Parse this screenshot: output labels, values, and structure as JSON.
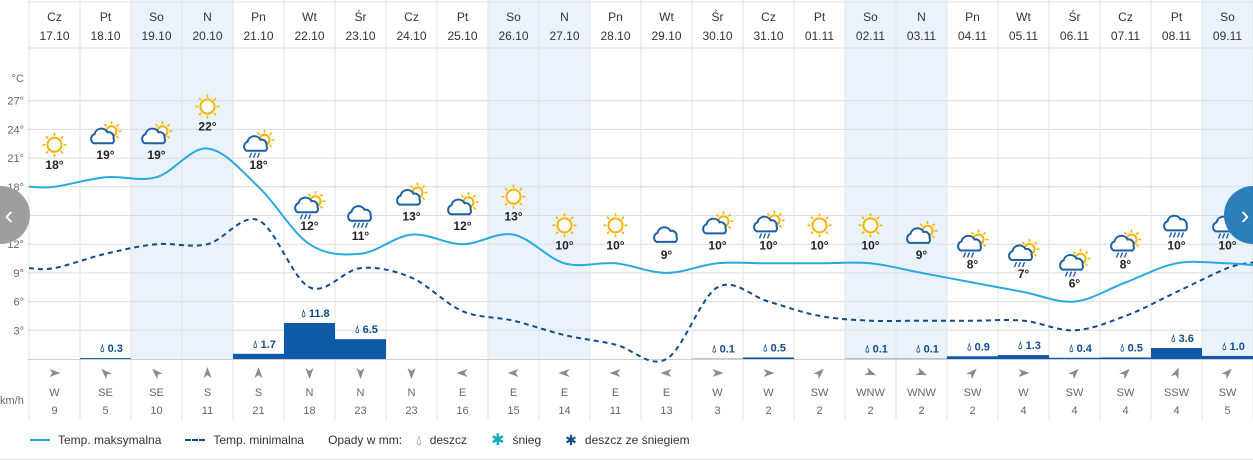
{
  "chart_data": {
    "type": "line",
    "yaxis": {
      "unit_label": "°C",
      "ticks": [
        "27°",
        "24°",
        "21°",
        "18°",
        "15°",
        "12°",
        "9°",
        "6°",
        "3°"
      ],
      "tick_values": [
        27,
        24,
        21,
        18,
        15,
        12,
        9,
        6,
        3
      ],
      "ylim": [
        0,
        30
      ]
    },
    "days": [
      {
        "dow": "Cz",
        "date": "17.10",
        "tmax": 18,
        "tmax_label": "18°",
        "tmin": 9.5,
        "precip": 0,
        "precip_label": "",
        "wind_dir": "W",
        "wind_speed": "9",
        "weekend": false,
        "icon": "sun-icon"
      },
      {
        "dow": "Pt",
        "date": "18.10",
        "tmax": 19,
        "tmax_label": "19°",
        "tmin": 11,
        "precip": 0.3,
        "precip_label": "0.3",
        "wind_dir": "SE",
        "wind_speed": "5",
        "weekend": false,
        "icon": "partly-cloudy-icon"
      },
      {
        "dow": "So",
        "date": "19.10",
        "tmax": 19,
        "tmax_label": "19°",
        "tmin": 12,
        "precip": 0,
        "precip_label": "",
        "wind_dir": "SE",
        "wind_speed": "10",
        "weekend": true,
        "icon": "partly-cloudy-icon"
      },
      {
        "dow": "N",
        "date": "20.10",
        "tmax": 22,
        "tmax_label": "22°",
        "tmin": 12,
        "precip": 0,
        "precip_label": "",
        "wind_dir": "S",
        "wind_speed": "11",
        "weekend": true,
        "icon": "sun-icon"
      },
      {
        "dow": "Pn",
        "date": "21.10",
        "tmax": 18,
        "tmax_label": "18°",
        "tmin": 14.5,
        "precip": 1.7,
        "precip_label": "1.7",
        "wind_dir": "S",
        "wind_speed": "21",
        "weekend": false,
        "icon": "sun-rain-icon"
      },
      {
        "dow": "Wt",
        "date": "22.10",
        "tmax": 12,
        "tmax_label": "12°",
        "tmin": 7.5,
        "precip": 11.8,
        "precip_label": "11.8",
        "wind_dir": "N",
        "wind_speed": "18",
        "weekend": false,
        "icon": "sun-rain-icon"
      },
      {
        "dow": "Śr",
        "date": "23.10",
        "tmax": 11,
        "tmax_label": "11°",
        "tmin": 9.5,
        "precip": 6.5,
        "precip_label": "6.5",
        "wind_dir": "N",
        "wind_speed": "23",
        "weekend": false,
        "icon": "rain-cloud-icon"
      },
      {
        "dow": "Cz",
        "date": "24.10",
        "tmax": 13,
        "tmax_label": "13°",
        "tmin": 8.5,
        "precip": 0,
        "precip_label": "",
        "wind_dir": "N",
        "wind_speed": "23",
        "weekend": false,
        "icon": "partly-cloudy-icon"
      },
      {
        "dow": "Pt",
        "date": "25.10",
        "tmax": 12,
        "tmax_label": "12°",
        "tmin": 5,
        "precip": 0,
        "precip_label": "",
        "wind_dir": "E",
        "wind_speed": "16",
        "weekend": false,
        "icon": "partly-cloudy-icon"
      },
      {
        "dow": "So",
        "date": "26.10",
        "tmax": 13,
        "tmax_label": "13°",
        "tmin": 4,
        "precip": 0,
        "precip_label": "",
        "wind_dir": "E",
        "wind_speed": "15",
        "weekend": true,
        "icon": "sun-icon"
      },
      {
        "dow": "N",
        "date": "27.10",
        "tmax": 10,
        "tmax_label": "10°",
        "tmin": 2.5,
        "precip": 0,
        "precip_label": "",
        "wind_dir": "E",
        "wind_speed": "14",
        "weekend": true,
        "icon": "sun-icon"
      },
      {
        "dow": "Pn",
        "date": "28.10",
        "tmax": 10,
        "tmax_label": "10°",
        "tmin": 1.5,
        "precip": 0,
        "precip_label": "",
        "wind_dir": "E",
        "wind_speed": "11",
        "weekend": false,
        "icon": "sun-icon"
      },
      {
        "dow": "Wt",
        "date": "29.10",
        "tmax": 9,
        "tmax_label": "9°",
        "tmin": 0,
        "precip": 0,
        "precip_label": "",
        "wind_dir": "E",
        "wind_speed": "13",
        "weekend": false,
        "icon": "cloud-icon"
      },
      {
        "dow": "Śr",
        "date": "30.10",
        "tmax": 10,
        "tmax_label": "10°",
        "tmin": 7.5,
        "precip": 0.1,
        "precip_label": "0.1",
        "wind_dir": "W",
        "wind_speed": "3",
        "weekend": false,
        "icon": "partly-cloudy-icon"
      },
      {
        "dow": "Cz",
        "date": "31.10",
        "tmax": 10,
        "tmax_label": "10°",
        "tmin": 6,
        "precip": 0.5,
        "precip_label": "0.5",
        "wind_dir": "W",
        "wind_speed": "2",
        "weekend": false,
        "icon": "sun-rain-icon"
      },
      {
        "dow": "Pt",
        "date": "01.11",
        "tmax": 10,
        "tmax_label": "10°",
        "tmin": 4.5,
        "precip": 0,
        "precip_label": "",
        "wind_dir": "SW",
        "wind_speed": "2",
        "weekend": false,
        "icon": "sun-icon"
      },
      {
        "dow": "So",
        "date": "02.11",
        "tmax": 10,
        "tmax_label": "10°",
        "tmin": 4,
        "precip": 0.1,
        "precip_label": "0.1",
        "wind_dir": "WNW",
        "wind_speed": "2",
        "weekend": true,
        "icon": "sun-icon"
      },
      {
        "dow": "N",
        "date": "03.11",
        "tmax": 9,
        "tmax_label": "9°",
        "tmin": 4,
        "precip": 0.1,
        "precip_label": "0.1",
        "wind_dir": "WNW",
        "wind_speed": "2",
        "weekend": true,
        "icon": "partly-cloudy-icon"
      },
      {
        "dow": "Pn",
        "date": "04.11",
        "tmax": 8,
        "tmax_label": "8°",
        "tmin": 4,
        "precip": 0.9,
        "precip_label": "0.9",
        "wind_dir": "SW",
        "wind_speed": "2",
        "weekend": false,
        "icon": "sun-rain-icon"
      },
      {
        "dow": "Wt",
        "date": "05.11",
        "tmax": 7,
        "tmax_label": "7°",
        "tmin": 4,
        "precip": 1.3,
        "precip_label": "1.3",
        "wind_dir": "W",
        "wind_speed": "4",
        "weekend": false,
        "icon": "sun-rain-icon"
      },
      {
        "dow": "Śr",
        "date": "06.11",
        "tmax": 6,
        "tmax_label": "6°",
        "tmin": 3,
        "precip": 0.4,
        "precip_label": "0.4",
        "wind_dir": "SW",
        "wind_speed": "4",
        "weekend": false,
        "icon": "sun-rain-icon"
      },
      {
        "dow": "Cz",
        "date": "07.11",
        "tmax": 8,
        "tmax_label": "8°",
        "tmin": 4.5,
        "precip": 0.5,
        "precip_label": "0.5",
        "wind_dir": "SW",
        "wind_speed": "4",
        "weekend": false,
        "icon": "sun-rain-icon"
      },
      {
        "dow": "Pt",
        "date": "08.11",
        "tmax": 10,
        "tmax_label": "10°",
        "tmin": 7,
        "precip": 3.6,
        "precip_label": "3.6",
        "wind_dir": "SSW",
        "wind_speed": "4",
        "weekend": false,
        "icon": "rain-cloud-icon"
      },
      {
        "dow": "So",
        "date": "09.11",
        "tmax": 10,
        "tmax_label": "10°",
        "tmin": 9.5,
        "precip": 1.0,
        "precip_label": "1.0",
        "wind_dir": "SW",
        "wind_speed": "5",
        "weekend": true,
        "icon": "sun-rain-icon"
      }
    ],
    "wind_unit": "km/h",
    "series": [
      {
        "name": "Temp. maksymalna",
        "style": "solid",
        "color": "#29a9e0"
      },
      {
        "name": "Temp. minimalna",
        "style": "dashed",
        "color": "#124b8a"
      }
    ],
    "precip_color": "#0f5aa8",
    "weekend_color": "#eaf3fb"
  },
  "legend": {
    "max_label": "Temp. maksymalna",
    "min_label": "Temp. minimalna",
    "precip_title": "Opady w mm:",
    "rain_label": "deszcz",
    "snow_label": "śnieg",
    "mixed_label": "deszcz ze śniegiem"
  },
  "nav": {
    "prev_icon": "chevron-left-icon",
    "next_icon": "chevron-right-icon",
    "prev_glyph": "‹",
    "next_glyph": "›"
  }
}
